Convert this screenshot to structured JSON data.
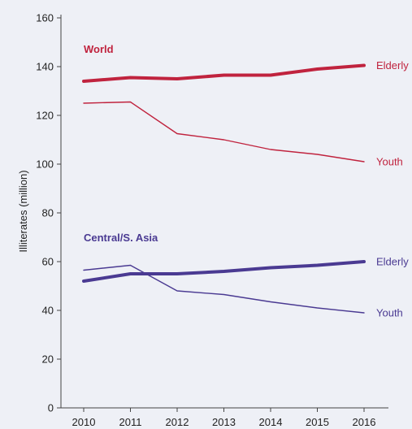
{
  "chart_data": {
    "type": "line",
    "title": "",
    "xlabel": "",
    "ylabel": "Illiterates (million)",
    "x": [
      "2010",
      "2011",
      "2012",
      "2013",
      "2014",
      "2015",
      "2016"
    ],
    "ylim": [
      0,
      160
    ],
    "yticks": [
      "0",
      "20",
      "40",
      "60",
      "80",
      "100",
      "120",
      "140",
      "160"
    ],
    "grid": false,
    "groups": [
      {
        "title": "World",
        "color": "#c0233e",
        "series": [
          {
            "name": "Elderly",
            "values": [
              134,
              135.5,
              135,
              136.5,
              136.5,
              139,
              140.5
            ],
            "weight": "thick"
          },
          {
            "name": "Youth",
            "values": [
              125,
              125.5,
              112.5,
              110,
              106,
              104,
              101
            ],
            "weight": "thin"
          }
        ]
      },
      {
        "title": "Central/S. Asia",
        "color": "#4a3a92",
        "series": [
          {
            "name": "Elderly",
            "values": [
              52,
              55,
              55,
              56,
              57.5,
              58.5,
              60
            ],
            "weight": "thick"
          },
          {
            "name": "Youth",
            "values": [
              56.5,
              58.5,
              48,
              46.5,
              43.5,
              41,
              39
            ],
            "weight": "thin"
          }
        ]
      }
    ]
  }
}
